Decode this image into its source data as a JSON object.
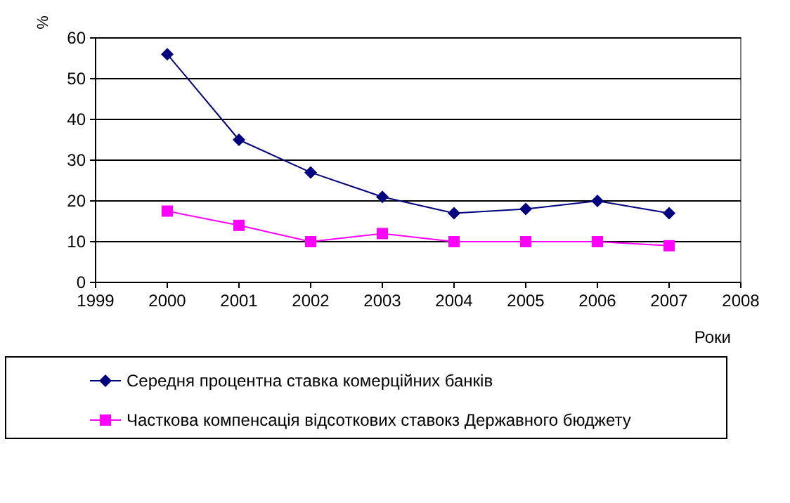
{
  "chart_data": {
    "type": "line",
    "ylabel": "%",
    "xlabel": "Роки",
    "x": [
      2000,
      2001,
      2002,
      2003,
      2004,
      2005,
      2006,
      2007
    ],
    "xlim": [
      1999,
      2008
    ],
    "xticks": [
      1999,
      2000,
      2001,
      2002,
      2003,
      2004,
      2005,
      2006,
      2007,
      2008
    ],
    "ylim": [
      0,
      60
    ],
    "yticks": [
      0,
      10,
      20,
      30,
      40,
      50,
      60
    ],
    "grid": "y",
    "legend": "bottom",
    "series": [
      {
        "name": "Середня процентна ставка комерційних банків",
        "color": "#000080",
        "marker": "diamond",
        "values": [
          56,
          35,
          27,
          21,
          17,
          18,
          20,
          17
        ]
      },
      {
        "name": "Часткова компенсація відсоткових ставокз Державного бюджету",
        "color": "#ff00ff",
        "marker": "square",
        "values": [
          17.5,
          14,
          10,
          12,
          10,
          10,
          10,
          9
        ]
      }
    ]
  }
}
